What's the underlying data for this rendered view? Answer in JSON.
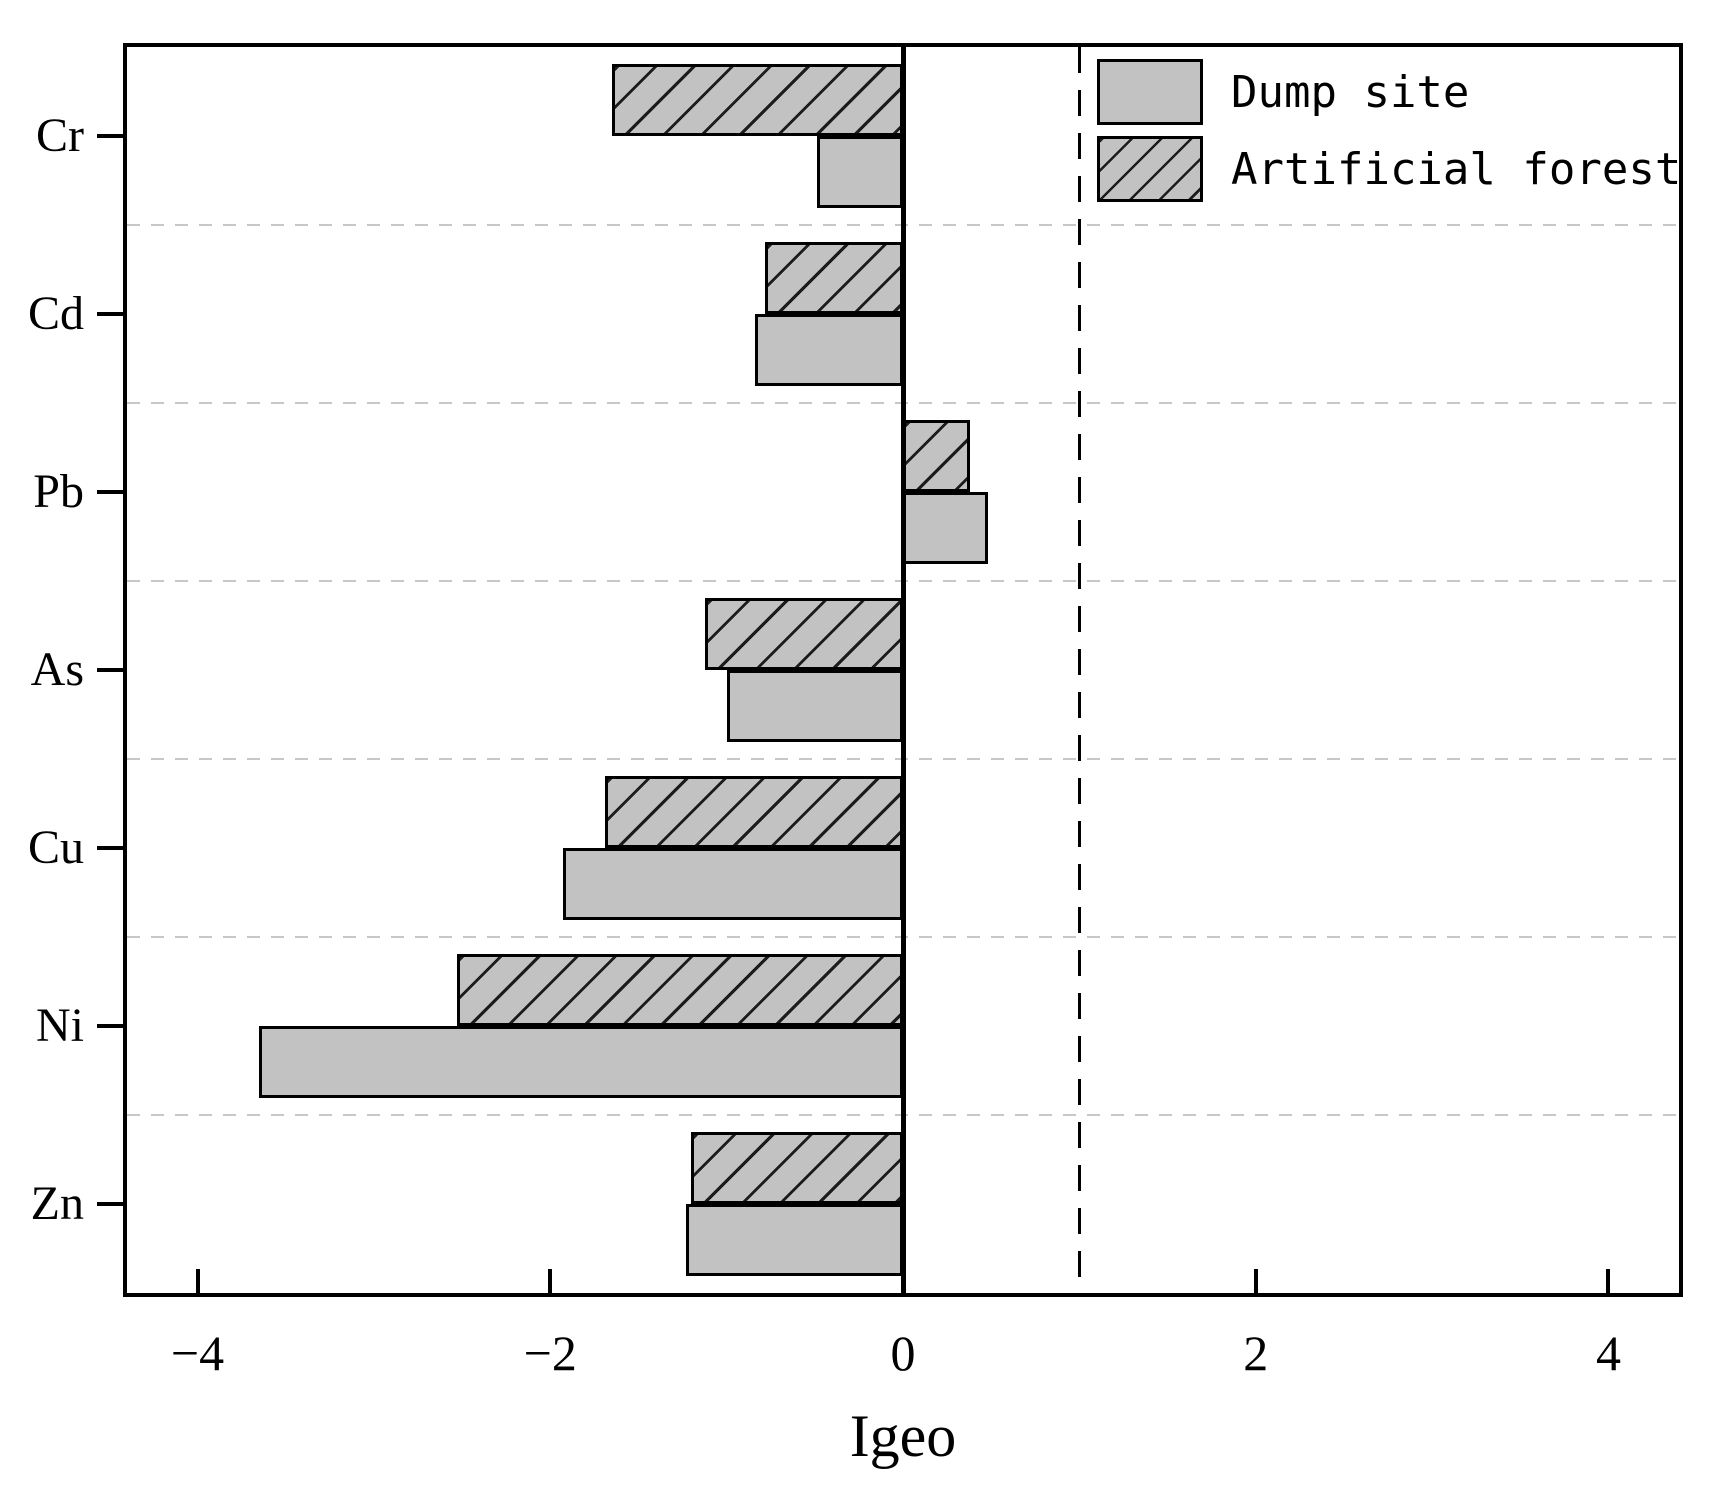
{
  "chart_data": {
    "type": "bar",
    "orientation": "horizontal",
    "title": "",
    "xlabel": "Igeo",
    "ylabel": "",
    "categories": [
      "Cr",
      "Cd",
      "Pb",
      "As",
      "Cu",
      "Ni",
      "Zn"
    ],
    "series": [
      {
        "name": "Dump site",
        "pattern": "solid",
        "values": [
          -0.49,
          -0.84,
          0.48,
          -1.0,
          -1.93,
          -3.65,
          -1.23
        ]
      },
      {
        "name": "Artificial forest",
        "pattern": "hatched",
        "values": [
          -1.65,
          -0.78,
          0.38,
          -1.12,
          -1.69,
          -2.53,
          -1.2
        ]
      }
    ],
    "xlim": [
      -4.4,
      4.4
    ],
    "xticks": [
      -4,
      -2,
      0,
      2,
      4
    ],
    "xtick_labels": [
      "−4",
      "−2",
      "0",
      "2",
      "4"
    ],
    "reference_line_x": 1,
    "zero_baseline": 0,
    "grid": "dashed horizontal separators between categories",
    "legend_position": "top-right",
    "legend_order": [
      "Dump site",
      "Artificial forest"
    ],
    "colors": {
      "bar_fill": "#c2c2c2",
      "bar_border": "#000000",
      "hatch": "#1c1c1c",
      "grid": "#c7c7c7",
      "axis": "#000000",
      "background": "#ffffff"
    }
  }
}
